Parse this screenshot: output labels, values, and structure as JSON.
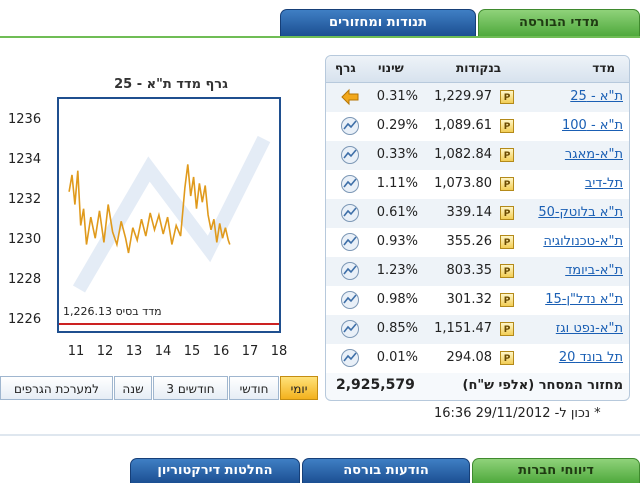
{
  "tabs": {
    "market_indices": "מדדי הבורסה",
    "movers": "תנודות ומחזורים"
  },
  "chart": {
    "title": "גרף מדד ת\"א - 25",
    "base_label": "מדד בסיס 1,226.13"
  },
  "chart_data": {
    "type": "line",
    "x_ticks": [
      "11",
      "12",
      "13",
      "14",
      "15",
      "16",
      "17",
      "18"
    ],
    "y_ticks": [
      "1236",
      "1234",
      "1232",
      "1230",
      "1228",
      "1226"
    ],
    "ylim": [
      1225.8,
      1236.8
    ],
    "base_value": 1226.13,
    "series": [
      {
        "values": [
          [
            10.95,
            1232.4
          ],
          [
            11.05,
            1233.2
          ],
          [
            11.15,
            1231.8
          ],
          [
            11.25,
            1233.4
          ],
          [
            11.35,
            1230.8
          ],
          [
            11.45,
            1231.6
          ],
          [
            11.55,
            1229.9
          ],
          [
            11.7,
            1231.2
          ],
          [
            11.85,
            1230.2
          ],
          [
            12.0,
            1231.5
          ],
          [
            12.15,
            1230.0
          ],
          [
            12.3,
            1231.8
          ],
          [
            12.45,
            1230.5
          ],
          [
            12.6,
            1229.9
          ],
          [
            12.75,
            1231.0
          ],
          [
            12.9,
            1230.2
          ],
          [
            13.0,
            1229.5
          ],
          [
            13.15,
            1230.7
          ],
          [
            13.3,
            1230.1
          ],
          [
            13.45,
            1231.1
          ],
          [
            13.6,
            1230.3
          ],
          [
            13.75,
            1231.4
          ],
          [
            13.9,
            1230.6
          ],
          [
            14.05,
            1231.3
          ],
          [
            14.2,
            1230.4
          ],
          [
            14.35,
            1231.2
          ],
          [
            14.5,
            1229.9
          ],
          [
            14.65,
            1230.8
          ],
          [
            14.8,
            1230.3
          ],
          [
            14.95,
            1232.6
          ],
          [
            15.05,
            1233.7
          ],
          [
            15.15,
            1232.2
          ],
          [
            15.25,
            1233.1
          ],
          [
            15.35,
            1231.6
          ],
          [
            15.45,
            1232.8
          ],
          [
            15.55,
            1231.9
          ],
          [
            15.65,
            1232.7
          ],
          [
            15.75,
            1231.3
          ],
          [
            15.85,
            1230.6
          ],
          [
            15.95,
            1231.1
          ],
          [
            16.05,
            1230.0
          ],
          [
            16.15,
            1230.9
          ],
          [
            16.25,
            1230.2
          ],
          [
            16.35,
            1230.7
          ],
          [
            16.45,
            1230.1
          ],
          [
            16.5,
            1229.9
          ]
        ]
      }
    ]
  },
  "period_buttons": [
    {
      "label": "יומי",
      "active": true
    },
    {
      "label": "חודשי",
      "active": false
    },
    {
      "label": "3 חודשים",
      "active": false
    },
    {
      "label": "שנה",
      "active": false
    },
    {
      "label": "למערכת הגרפים",
      "active": false
    }
  ],
  "table": {
    "headers": {
      "index": "מדד",
      "points": "בנקודות",
      "change": "שינוי",
      "graph": "גרף"
    },
    "badge": "P",
    "rows": [
      {
        "name": "ת\"א - 25",
        "points": "1,229.97",
        "change": "0.31%"
      },
      {
        "name": "ת\"א - 100",
        "points": "1,089.61",
        "change": "0.29%"
      },
      {
        "name": "ת\"א-מאגר",
        "points": "1,082.84",
        "change": "0.33%"
      },
      {
        "name": "תל-דיב",
        "points": "1,073.80",
        "change": "1.11%"
      },
      {
        "name": "ת\"א בלוטק-50",
        "points": "339.14",
        "change": "0.61%"
      },
      {
        "name": "ת\"א-טכנולוגיה",
        "points": "355.26",
        "change": "0.93%"
      },
      {
        "name": "ת\"א-ביומד",
        "points": "803.35",
        "change": "1.23%"
      },
      {
        "name": "ת\"א נדל\"ן-15",
        "points": "301.32",
        "change": "0.98%"
      },
      {
        "name": "ת\"א-נפט וגז",
        "points": "1,151.47",
        "change": "0.85%"
      },
      {
        "name": "תל בונד 20",
        "points": "294.08",
        "change": "0.01%"
      }
    ],
    "turnover_label": "מחזור המסחר (אלפי ש\"ח)",
    "turnover_value": "2,925,579"
  },
  "updated_at": "* נכון ל- 29/11/2012 16:36",
  "bottom_tabs": {
    "company_reports": "דיווחי חברות",
    "exchange_notices": "הודעות בורסה",
    "board_decisions": "החלטות דירקטוריון"
  },
  "colors": {
    "accent_green": "#4fa93c",
    "accent_blue": "#1c4f92",
    "chart_line": "#e09a1c",
    "base_line": "#cc2222"
  }
}
